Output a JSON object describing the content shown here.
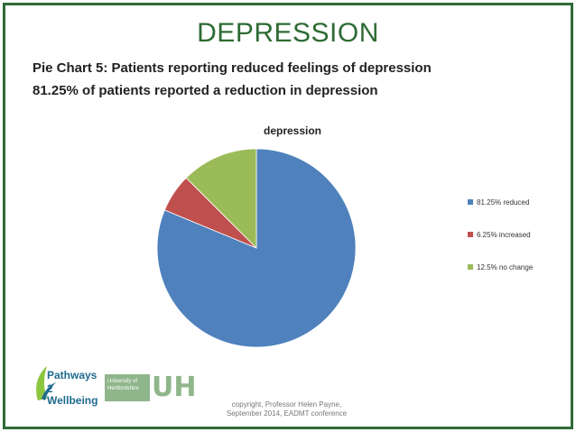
{
  "slide": {
    "title": "DEPRESSION",
    "subtitle_line1": "Pie Chart 5: Patients reporting reduced feelings of depression",
    "subtitle_line2": "81.25% of patients reported a reduction in depression"
  },
  "chart_data": {
    "type": "pie",
    "title": "depression",
    "categories": [
      "81.25% reduced",
      "6.25% increased",
      "12.5% no change"
    ],
    "values": [
      81.25,
      6.25,
      12.5
    ],
    "colors": [
      "#4f81bd",
      "#c0504d",
      "#9bbb59"
    ],
    "legend_position": "right"
  },
  "logos": {
    "pathways_line1": "Pathways",
    "pathways_line2": "2 Wellbeing",
    "university_line1": "University of",
    "university_line2": "Hertfordshire",
    "uh_mark": "UH"
  },
  "footer": {
    "copyright_line1": "copyright, Professor Helen Payne,",
    "copyright_line2": "September 2014, EADMT conference"
  }
}
